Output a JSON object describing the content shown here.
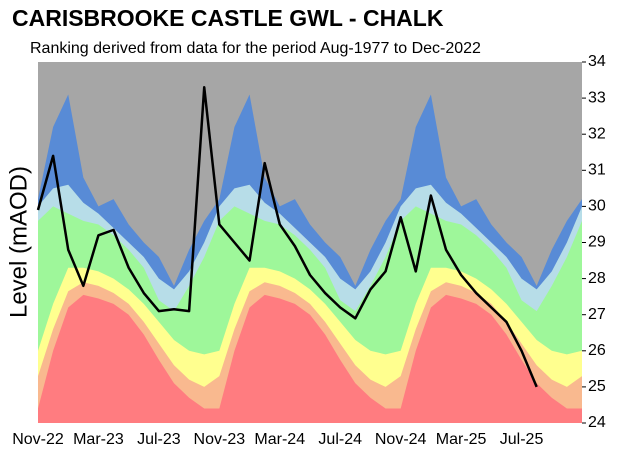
{
  "chart_data": {
    "type": "area",
    "title": "CARISBROOKE CASTLE GWL - CHALK",
    "subtitle": "Ranking derived from data for the period Aug-1977 to Dec-2022",
    "y_label": "Level (mAOD)",
    "categories": [
      "Nov-22",
      null,
      null,
      null,
      "Mar-23",
      null,
      null,
      null,
      "Jul-23",
      null,
      null,
      null,
      "Nov-23",
      null,
      null,
      null,
      "Mar-24",
      null,
      null,
      null,
      "Jul-24",
      null,
      null,
      null,
      "Nov-24",
      null,
      null,
      null,
      "Mar-25",
      null,
      null,
      null,
      "Jul-25",
      null,
      null,
      null,
      null
    ],
    "ylim": [
      24,
      34
    ],
    "yticks": [
      24,
      25,
      26,
      27,
      28,
      29,
      30,
      31,
      32,
      33,
      34
    ],
    "plot_background": "#a6a6a6",
    "series": [
      {
        "color": "#ff7c80",
        "values": [
          24.4,
          26.0,
          27.2,
          27.55,
          27.45,
          27.3,
          27.0,
          26.45,
          25.75,
          25.1,
          24.7,
          24.4,
          24.4,
          26.0,
          27.2,
          27.55,
          27.45,
          27.3,
          27.0,
          26.45,
          25.75,
          25.1,
          24.7,
          24.4,
          24.4,
          26.0,
          27.2,
          27.55,
          27.45,
          27.3,
          27.0,
          26.45,
          25.75,
          25.1,
          24.7,
          24.4,
          24.4
        ]
      },
      {
        "color": "#f9b98f",
        "values": [
          25.3,
          26.6,
          27.65,
          27.9,
          27.8,
          27.6,
          27.3,
          26.8,
          26.2,
          25.6,
          25.2,
          25.0,
          25.3,
          26.6,
          27.65,
          27.9,
          27.8,
          27.6,
          27.3,
          26.8,
          26.2,
          25.6,
          25.2,
          25.0,
          25.3,
          26.6,
          27.65,
          27.9,
          27.8,
          27.6,
          27.3,
          26.8,
          26.2,
          25.6,
          25.2,
          25.0,
          25.3
        ]
      },
      {
        "color": "#ffff8f",
        "values": [
          26.0,
          27.3,
          28.3,
          28.3,
          28.2,
          28.0,
          27.7,
          27.3,
          26.8,
          26.3,
          26.0,
          25.9,
          26.0,
          27.3,
          28.3,
          28.3,
          28.2,
          28.0,
          27.7,
          27.3,
          26.8,
          26.3,
          26.0,
          25.9,
          26.0,
          27.3,
          28.3,
          28.3,
          28.2,
          28.0,
          27.7,
          27.3,
          26.8,
          26.3,
          26.0,
          25.9,
          26.0
        ]
      },
      {
        "color": "#9ef79a",
        "values": [
          29.6,
          30.0,
          29.8,
          29.6,
          29.5,
          29.2,
          28.8,
          28.3,
          27.4,
          27.1,
          27.8,
          28.6,
          29.6,
          30.0,
          29.8,
          29.6,
          29.5,
          29.2,
          28.8,
          28.3,
          27.4,
          27.1,
          27.8,
          28.6,
          29.6,
          30.0,
          29.8,
          29.6,
          29.5,
          29.2,
          28.8,
          28.3,
          27.4,
          27.1,
          27.8,
          28.6,
          29.6
        ]
      },
      {
        "color": "#b7dde8",
        "values": [
          30.0,
          30.5,
          30.6,
          30.1,
          29.8,
          29.4,
          29.0,
          28.6,
          28.0,
          27.7,
          28.2,
          29.0,
          30.0,
          30.5,
          30.6,
          30.1,
          29.8,
          29.4,
          29.0,
          28.6,
          28.0,
          27.7,
          28.2,
          29.0,
          30.0,
          30.5,
          30.6,
          30.1,
          29.8,
          29.4,
          29.0,
          28.6,
          28.0,
          27.7,
          28.2,
          29.0,
          30.0
        ]
      },
      {
        "color": "#588bd6",
        "values": [
          30.2,
          32.2,
          33.1,
          30.8,
          30.0,
          30.2,
          29.5,
          29.0,
          28.6,
          27.8,
          28.8,
          29.6,
          30.2,
          32.2,
          33.1,
          30.8,
          30.0,
          30.2,
          29.5,
          29.0,
          28.6,
          27.8,
          28.8,
          29.6,
          30.2,
          32.2,
          33.1,
          30.8,
          30.0,
          30.2,
          29.5,
          29.0,
          28.6,
          27.8,
          28.8,
          29.6,
          30.2
        ]
      }
    ],
    "line": {
      "color": "#000000",
      "values": [
        29.9,
        31.4,
        28.8,
        27.8,
        29.2,
        29.35,
        28.3,
        27.6,
        27.1,
        27.15,
        27.1,
        33.3,
        29.5,
        29.0,
        28.5,
        31.2,
        29.5,
        28.9,
        28.1,
        27.6,
        27.2,
        26.9,
        27.7,
        28.2,
        29.7,
        28.2,
        30.3,
        28.8,
        28.1,
        27.6,
        27.2,
        26.8,
        26.0,
        25.0,
        null,
        null,
        null
      ]
    }
  }
}
